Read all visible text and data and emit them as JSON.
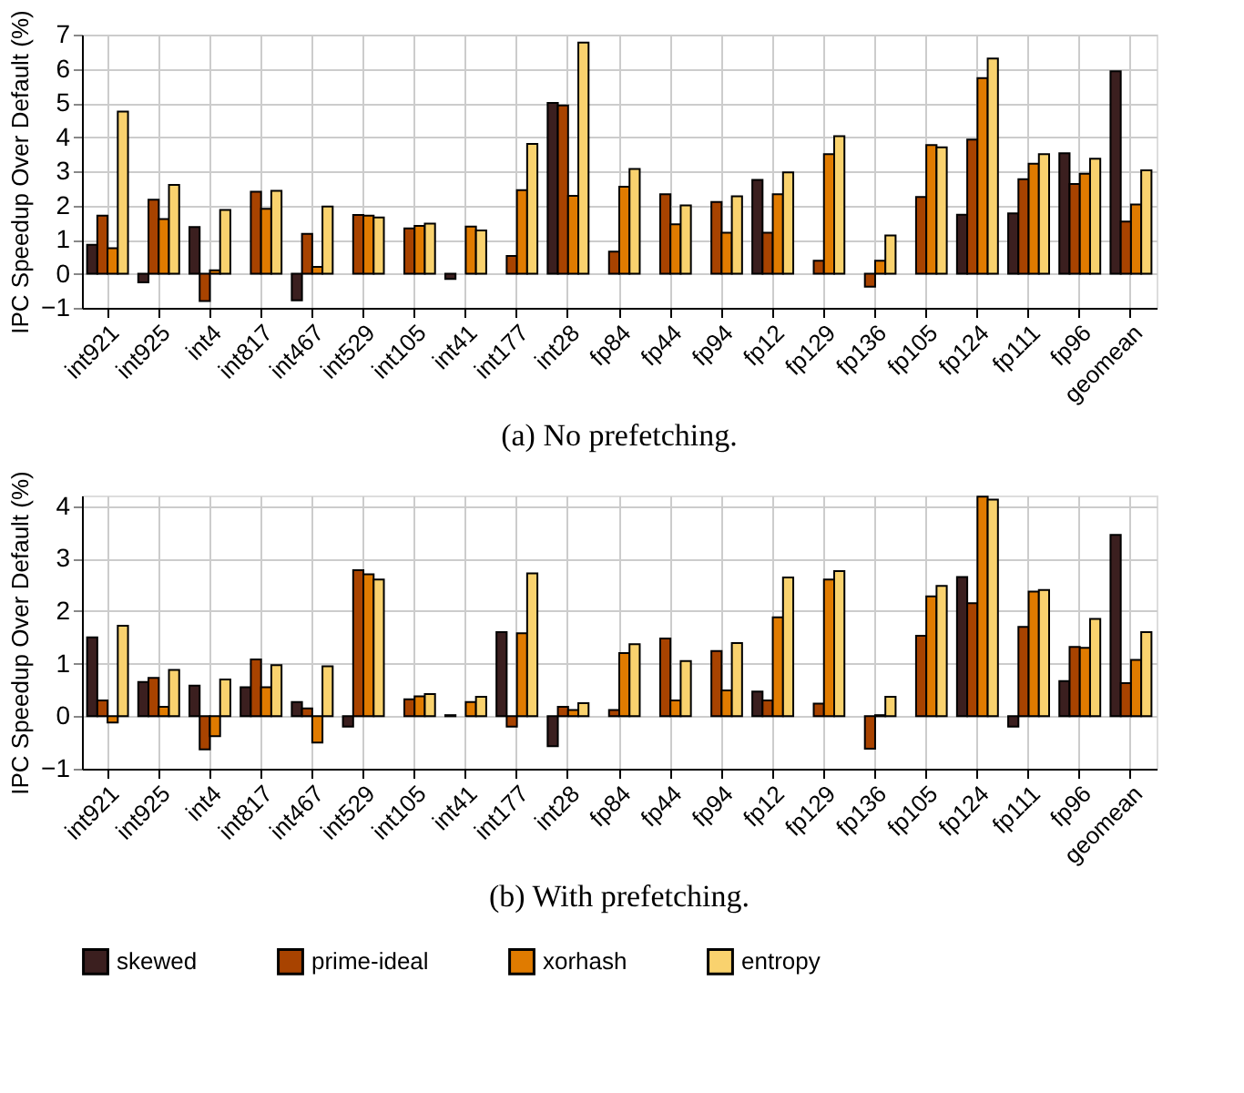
{
  "chart_data": [
    {
      "type": "bar",
      "ylabel": "IPC Speedup Over Default (%)",
      "annotations": [
        "(a) No prefetching."
      ],
      "legend": "bottom",
      "grid": true,
      "categories": [
        "int921",
        "int925",
        "int4",
        "int817",
        "int467",
        "int529",
        "int105",
        "int41",
        "int177",
        "int28",
        "fp84",
        "fp44",
        "fp94",
        "fp12",
        "fp129",
        "fp136",
        "fp105",
        "fp124",
        "fp111",
        "fp96",
        "geomean"
      ],
      "ylim": [
        -1,
        7
      ],
      "yticks": [
        -1,
        0,
        1,
        2,
        3,
        4,
        5,
        6,
        7
      ],
      "series": [
        {
          "name": "skewed",
          "color": "#3b1f1f",
          "values": [
            0.85,
            -0.25,
            1.37,
            null,
            -0.78,
            null,
            null,
            -0.15,
            null,
            5.0,
            null,
            null,
            null,
            2.75,
            null,
            null,
            null,
            1.73,
            1.77,
            3.53,
            5.93
          ]
        },
        {
          "name": "prime-ideal",
          "color": "#a84300",
          "values": [
            1.7,
            2.17,
            -0.8,
            2.4,
            1.17,
            1.72,
            1.33,
            null,
            0.52,
            4.93,
            0.65,
            2.33,
            2.1,
            1.2,
            0.38,
            -0.38,
            2.25,
            3.93,
            2.77,
            2.63,
            1.53
          ]
        },
        {
          "name": "xorhash",
          "color": "#e07b00",
          "values": [
            0.75,
            1.6,
            0.1,
            1.9,
            0.2,
            1.7,
            1.4,
            1.38,
            2.45,
            2.28,
            2.55,
            1.45,
            1.2,
            2.33,
            3.5,
            0.38,
            3.77,
            5.73,
            3.22,
            2.93,
            2.03
          ]
        },
        {
          "name": "entropy",
          "color": "#f9d26e",
          "values": [
            4.75,
            2.6,
            1.87,
            2.43,
            1.97,
            1.65,
            1.47,
            1.27,
            3.8,
            6.77,
            3.07,
            2.0,
            2.27,
            2.97,
            4.03,
            1.12,
            3.7,
            6.3,
            3.5,
            3.37,
            3.03
          ]
        }
      ]
    },
    {
      "type": "bar",
      "ylabel": "IPC Speedup Over Default (%)",
      "annotations": [
        "(b) With prefetching."
      ],
      "legend": "bottom",
      "grid": true,
      "categories": [
        "int921",
        "int925",
        "int4",
        "int817",
        "int467",
        "int529",
        "int105",
        "int41",
        "int177",
        "int28",
        "fp84",
        "fp44",
        "fp94",
        "fp12",
        "fp129",
        "fp136",
        "fp105",
        "fp124",
        "fp111",
        "fp96",
        "geomean"
      ],
      "ylim": [
        -1,
        4.2
      ],
      "yticks": [
        -1,
        0,
        1,
        2,
        3,
        4
      ],
      "series": [
        {
          "name": "skewed",
          "color": "#3b1f1f",
          "values": [
            1.5,
            0.65,
            0.58,
            0.55,
            0.27,
            -0.2,
            null,
            0.02,
            1.6,
            -0.57,
            null,
            null,
            null,
            0.47,
            null,
            null,
            null,
            2.65,
            -0.2,
            0.67,
            3.45
          ]
        },
        {
          "name": "prime-ideal",
          "color": "#a84300",
          "values": [
            0.3,
            0.73,
            -0.63,
            1.08,
            0.15,
            2.78,
            0.32,
            null,
            -0.2,
            0.18,
            0.12,
            1.48,
            1.24,
            0.3,
            0.24,
            -0.62,
            1.53,
            2.15,
            1.7,
            1.32,
            0.63
          ]
        },
        {
          "name": "xorhash",
          "color": "#e07b00",
          "values": [
            -0.12,
            0.18,
            -0.38,
            0.55,
            -0.5,
            2.7,
            0.38,
            0.27,
            1.58,
            0.12,
            1.2,
            0.3,
            0.49,
            1.88,
            2.6,
            0.02,
            2.28,
            4.18,
            2.37,
            1.3,
            1.07
          ]
        },
        {
          "name": "entropy",
          "color": "#f9d26e",
          "values": [
            1.72,
            0.88,
            0.7,
            0.97,
            0.95,
            2.6,
            0.42,
            0.37,
            2.72,
            0.25,
            1.37,
            1.05,
            1.39,
            2.64,
            2.76,
            0.37,
            2.48,
            4.12,
            2.4,
            1.85,
            1.6
          ]
        }
      ]
    }
  ]
}
